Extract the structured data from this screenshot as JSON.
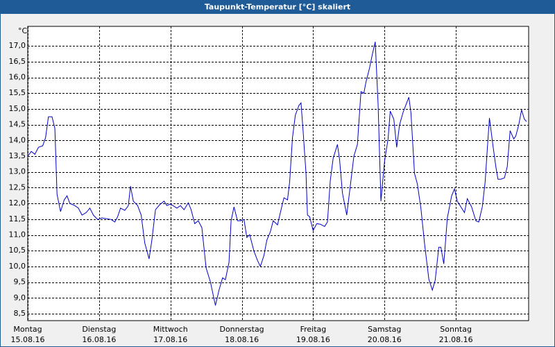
{
  "chart_data": {
    "type": "line",
    "title": "Taupunkt-Temperatur [°C] skaliert",
    "y_unit": "°C",
    "color": "#0000c8",
    "grid": true,
    "xlim": [
      0,
      7
    ],
    "ylim": [
      8.28,
      17.62
    ],
    "xticks": [
      {
        "value": 0,
        "label": "Montag"
      },
      {
        "value": 1,
        "label": "Dienstag"
      },
      {
        "value": 2,
        "label": "Mittwoch"
      },
      {
        "value": 3,
        "label": "Donnerstag"
      },
      {
        "value": 4,
        "label": "Freitag"
      },
      {
        "value": 5,
        "label": "Samstag"
      },
      {
        "value": 6,
        "label": "Sonntag"
      }
    ],
    "xtick_dates": [
      "15.08.16",
      "16.08.16",
      "17.08.16",
      "18.08.16",
      "19.08.16",
      "20.08.16",
      "21.08.16"
    ],
    "yticks": [
      {
        "value": 8.5,
        "label": "8,5"
      },
      {
        "value": 9,
        "label": "9,0"
      },
      {
        "value": 9.5,
        "label": "9,5"
      },
      {
        "value": 10,
        "label": "10,0"
      },
      {
        "value": 10.5,
        "label": "10,5"
      },
      {
        "value": 11,
        "label": "11,0"
      },
      {
        "value": 11.5,
        "label": "11,5"
      },
      {
        "value": 12,
        "label": "12,0"
      },
      {
        "value": 12.5,
        "label": "12,5"
      },
      {
        "value": 13,
        "label": "13,0"
      },
      {
        "value": 13.5,
        "label": "13,5"
      },
      {
        "value": 14,
        "label": "14,0"
      },
      {
        "value": 14.5,
        "label": "14,5"
      },
      {
        "value": 15,
        "label": "15,0"
      },
      {
        "value": 15.5,
        "label": "15,5"
      },
      {
        "value": 16,
        "label": "16,0"
      },
      {
        "value": 16.5,
        "label": "16,5"
      },
      {
        "value": 17,
        "label": "17,0"
      }
    ],
    "x": [
      0,
      0.05,
      0.1,
      0.15,
      0.21,
      0.25,
      0.29,
      0.34,
      0.38,
      0.41,
      0.46,
      0.51,
      0.55,
      0.59,
      0.66,
      0.71,
      0.76,
      0.82,
      0.87,
      0.92,
      0.98,
      1.04,
      1.17,
      1.22,
      1.26,
      1.3,
      1.36,
      1.41,
      1.44,
      1.48,
      1.54,
      1.59,
      1.64,
      1.7,
      1.74,
      1.79,
      1.85,
      1.91,
      1.95,
      2.0,
      2.09,
      2.14,
      2.19,
      2.25,
      2.29,
      2.34,
      2.39,
      2.44,
      2.5,
      2.56,
      2.63,
      2.68,
      2.73,
      2.77,
      2.82,
      2.85,
      2.89,
      2.94,
      2.98,
      3.03,
      3.07,
      3.11,
      3.17,
      3.22,
      3.26,
      3.31,
      3.35,
      3.4,
      3.44,
      3.5,
      3.55,
      3.59,
      3.64,
      3.67,
      3.71,
      3.75,
      3.8,
      3.83,
      3.86,
      3.9,
      3.92,
      3.95,
      4.0,
      4.05,
      4.1,
      4.16,
      4.2,
      4.24,
      4.28,
      4.34,
      4.37,
      4.41,
      4.47,
      4.52,
      4.57,
      4.62,
      4.67,
      4.71,
      4.74,
      4.79,
      4.83,
      4.87,
      4.91,
      4.95,
      5.0,
      5.05,
      5.08,
      5.13,
      5.17,
      5.21,
      5.26,
      5.31,
      5.34,
      5.37,
      5.42,
      5.46,
      5.51,
      5.56,
      5.62,
      5.67,
      5.71,
      5.76,
      5.79,
      5.83,
      5.88,
      5.94,
      5.98,
      6.02,
      6.07,
      6.12,
      6.16,
      6.22,
      6.28,
      6.32,
      6.37,
      6.41,
      6.45,
      6.47,
      6.52,
      6.56,
      6.59,
      6.63,
      6.68,
      6.72,
      6.76,
      6.81,
      6.84,
      6.88,
      6.92,
      6.96,
      6.99
    ],
    "values": [
      13.5,
      13.65,
      13.56,
      13.78,
      13.83,
      14.09,
      14.75,
      14.75,
      14.38,
      12.29,
      11.74,
      12.11,
      12.24,
      12.0,
      11.93,
      11.85,
      11.63,
      11.71,
      11.85,
      11.63,
      11.49,
      11.54,
      11.49,
      11.41,
      11.58,
      11.85,
      11.78,
      11.93,
      12.55,
      12.07,
      11.93,
      11.63,
      10.74,
      10.24,
      10.85,
      11.8,
      11.96,
      12.07,
      11.93,
      11.98,
      11.85,
      11.93,
      11.8,
      12.02,
      11.8,
      11.36,
      11.45,
      11.23,
      9.95,
      9.51,
      8.76,
      9.25,
      9.64,
      9.58,
      10.13,
      11.45,
      11.89,
      11.45,
      11.45,
      11.49,
      10.92,
      11.01,
      10.48,
      10.19,
      10.0,
      10.35,
      10.83,
      11.1,
      11.45,
      11.32,
      11.8,
      12.18,
      12.11,
      12.68,
      14.09,
      14.8,
      15.11,
      15.19,
      14.27,
      12.95,
      11.63,
      11.58,
      11.14,
      11.36,
      11.34,
      11.27,
      11.41,
      12.73,
      13.43,
      13.87,
      13.39,
      12.33,
      11.63,
      12.55,
      13.5,
      13.87,
      15.55,
      15.5,
      15.85,
      16.3,
      16.74,
      17.13,
      15.15,
      12.07,
      13.34,
      14.05,
      14.93,
      14.67,
      13.78,
      14.49,
      14.89,
      15.19,
      15.37,
      14.89,
      12.95,
      12.62,
      11.85,
      10.74,
      9.6,
      9.25,
      9.56,
      10.61,
      10.61,
      10.08,
      11.54,
      12.24,
      12.46,
      12.07,
      11.89,
      11.71,
      12.15,
      11.89,
      11.45,
      11.41,
      11.89,
      12.68,
      14.05,
      14.71,
      13.83,
      13.17,
      12.77,
      12.77,
      12.81,
      13.17,
      14.31,
      14.05,
      14.14,
      14.49,
      14.97,
      14.67,
      14.6
    ]
  }
}
